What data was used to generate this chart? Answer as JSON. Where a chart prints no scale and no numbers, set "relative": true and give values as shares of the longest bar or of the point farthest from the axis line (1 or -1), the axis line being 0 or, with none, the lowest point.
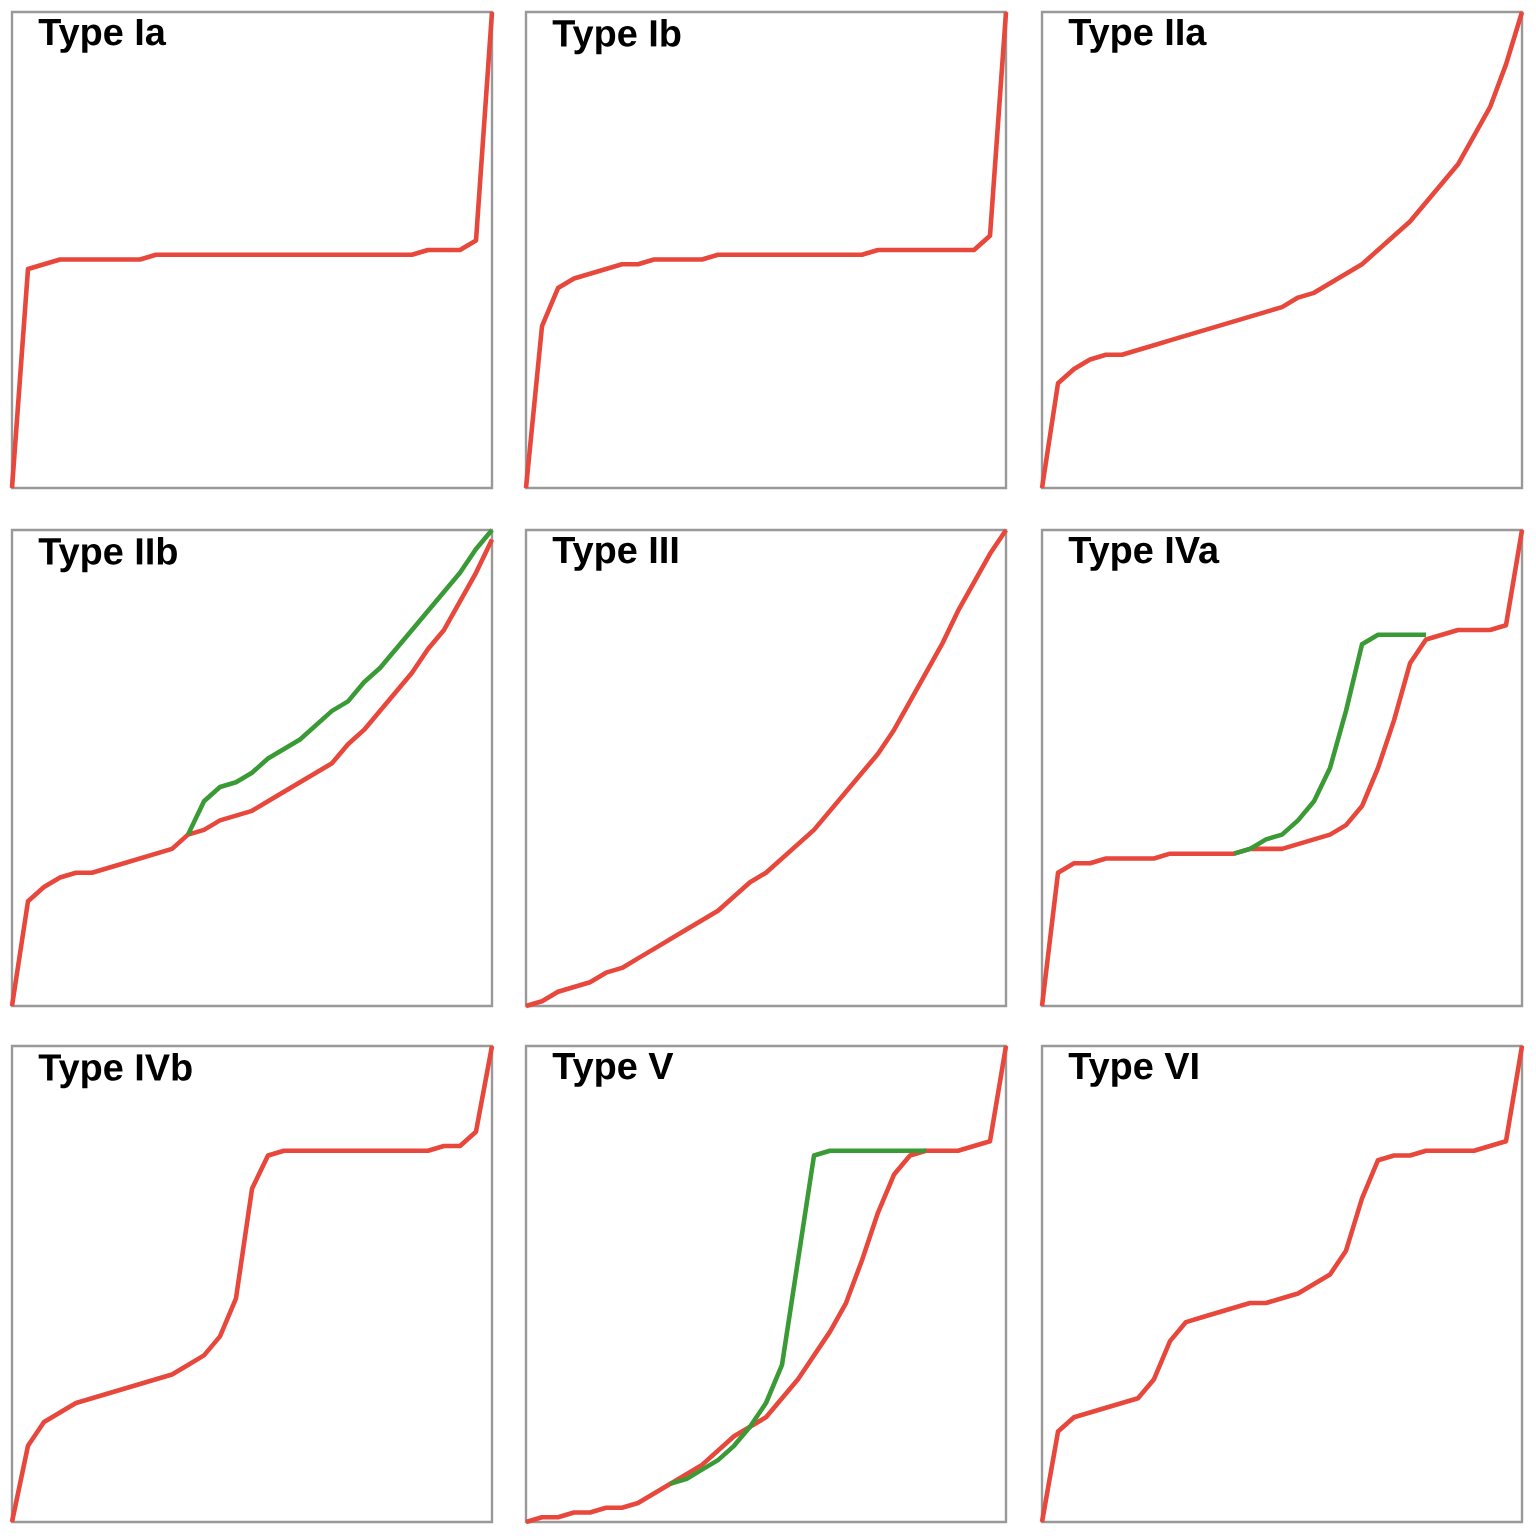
{
  "chart_data": [
    {
      "type": "line",
      "title": "Type Ia",
      "relative": true,
      "tick_labels": false,
      "categories": [
        null,
        null,
        null,
        null,
        null,
        null,
        null,
        null,
        null,
        null,
        null,
        null,
        null,
        null,
        null,
        null,
        null,
        null,
        null,
        null,
        null,
        null,
        null,
        null,
        null,
        null,
        null,
        null,
        null,
        null,
        null
      ],
      "series": [
        {
          "color": "#e8473c",
          "values": [
            0,
            0.46,
            0.47,
            0.48,
            0.48,
            0.48,
            0.48,
            0.48,
            0.48,
            0.49,
            0.49,
            0.49,
            0.49,
            0.49,
            0.49,
            0.49,
            0.49,
            0.49,
            0.49,
            0.49,
            0.49,
            0.49,
            0.49,
            0.49,
            0.49,
            0.49,
            0.5,
            0.5,
            0.5,
            0.52,
            1
          ]
        }
      ]
    },
    {
      "type": "line",
      "title": "Type Ib",
      "relative": true,
      "tick_labels": false,
      "categories": [
        null,
        null,
        null,
        null,
        null,
        null,
        null,
        null,
        null,
        null,
        null,
        null,
        null,
        null,
        null,
        null,
        null,
        null,
        null,
        null,
        null,
        null,
        null,
        null,
        null,
        null,
        null,
        null,
        null,
        null,
        null
      ],
      "series": [
        {
          "color": "#e8473c",
          "values": [
            0,
            0.34,
            0.42,
            0.44,
            0.45,
            0.46,
            0.47,
            0.47,
            0.48,
            0.48,
            0.48,
            0.48,
            0.49,
            0.49,
            0.49,
            0.49,
            0.49,
            0.49,
            0.49,
            0.49,
            0.49,
            0.49,
            0.5,
            0.5,
            0.5,
            0.5,
            0.5,
            0.5,
            0.5,
            0.53,
            1
          ]
        }
      ]
    },
    {
      "type": "line",
      "title": "Type IIa",
      "relative": true,
      "tick_labels": false,
      "categories": [
        null,
        null,
        null,
        null,
        null,
        null,
        null,
        null,
        null,
        null,
        null,
        null,
        null,
        null,
        null,
        null,
        null,
        null,
        null,
        null,
        null,
        null,
        null,
        null,
        null,
        null,
        null,
        null,
        null,
        null,
        null
      ],
      "series": [
        {
          "color": "#e8473c",
          "values": [
            0,
            0.22,
            0.25,
            0.27,
            0.28,
            0.28,
            0.29,
            0.3,
            0.31,
            0.32,
            0.33,
            0.34,
            0.35,
            0.36,
            0.37,
            0.38,
            0.4,
            0.41,
            0.43,
            0.45,
            0.47,
            0.5,
            0.53,
            0.56,
            0.6,
            0.64,
            0.68,
            0.74,
            0.8,
            0.89,
            1
          ]
        }
      ]
    },
    {
      "type": "line",
      "title": "Type IIb",
      "relative": true,
      "tick_labels": false,
      "categories": [
        null,
        null,
        null,
        null,
        null,
        null,
        null,
        null,
        null,
        null,
        null,
        null,
        null,
        null,
        null,
        null,
        null,
        null,
        null,
        null,
        null,
        null,
        null,
        null,
        null,
        null,
        null,
        null,
        null,
        null,
        null
      ],
      "series": [
        {
          "color": "#e8473c",
          "values": [
            0,
            0.22,
            0.25,
            0.27,
            0.28,
            0.28,
            0.29,
            0.3,
            0.31,
            0.32,
            0.33,
            0.36,
            0.37,
            0.39,
            0.4,
            0.41,
            0.43,
            0.45,
            0.47,
            0.49,
            0.51,
            0.55,
            0.58,
            0.62,
            0.66,
            0.7,
            0.75,
            0.79,
            0.85,
            0.91,
            0.98
          ]
        },
        {
          "color": "#3a9a35",
          "values": [
            null,
            null,
            null,
            null,
            null,
            null,
            null,
            null,
            null,
            null,
            null,
            0.36,
            0.43,
            0.46,
            0.47,
            0.49,
            0.52,
            0.54,
            0.56,
            0.59,
            0.62,
            0.64,
            0.68,
            0.71,
            0.75,
            0.79,
            0.83,
            0.87,
            0.91,
            0.96,
            1
          ]
        }
      ]
    },
    {
      "type": "line",
      "title": "Type III",
      "relative": true,
      "tick_labels": false,
      "categories": [
        null,
        null,
        null,
        null,
        null,
        null,
        null,
        null,
        null,
        null,
        null,
        null,
        null,
        null,
        null,
        null,
        null,
        null,
        null,
        null,
        null,
        null,
        null,
        null,
        null,
        null,
        null,
        null,
        null,
        null,
        null
      ],
      "series": [
        {
          "color": "#e8473c",
          "values": [
            0,
            0.01,
            0.03,
            0.04,
            0.05,
            0.07,
            0.08,
            0.1,
            0.12,
            0.14,
            0.16,
            0.18,
            0.2,
            0.23,
            0.26,
            0.28,
            0.31,
            0.34,
            0.37,
            0.41,
            0.45,
            0.49,
            0.53,
            0.58,
            0.64,
            0.7,
            0.76,
            0.83,
            0.89,
            0.95,
            1
          ]
        }
      ]
    },
    {
      "type": "line",
      "title": "Type IVa",
      "relative": true,
      "tick_labels": false,
      "categories": [
        null,
        null,
        null,
        null,
        null,
        null,
        null,
        null,
        null,
        null,
        null,
        null,
        null,
        null,
        null,
        null,
        null,
        null,
        null,
        null,
        null,
        null,
        null,
        null,
        null,
        null,
        null,
        null,
        null,
        null,
        null
      ],
      "series": [
        {
          "color": "#e8473c",
          "values": [
            0,
            0.28,
            0.3,
            0.3,
            0.31,
            0.31,
            0.31,
            0.31,
            0.32,
            0.32,
            0.32,
            0.32,
            0.32,
            0.33,
            0.33,
            0.33,
            0.34,
            0.35,
            0.36,
            0.38,
            0.42,
            0.5,
            0.6,
            0.72,
            0.77,
            0.78,
            0.79,
            0.79,
            0.79,
            0.8,
            1
          ]
        },
        {
          "color": "#3a9a35",
          "values": [
            null,
            null,
            null,
            null,
            null,
            null,
            null,
            null,
            null,
            null,
            null,
            null,
            0.32,
            0.33,
            0.35,
            0.36,
            0.39,
            0.43,
            0.5,
            0.62,
            0.76,
            0.78,
            0.78,
            0.78,
            0.78,
            null,
            null,
            null,
            null,
            null,
            null
          ]
        }
      ]
    },
    {
      "type": "line",
      "title": "Type IVb",
      "relative": true,
      "tick_labels": false,
      "categories": [
        null,
        null,
        null,
        null,
        null,
        null,
        null,
        null,
        null,
        null,
        null,
        null,
        null,
        null,
        null,
        null,
        null,
        null,
        null,
        null,
        null,
        null,
        null,
        null,
        null,
        null,
        null,
        null,
        null,
        null,
        null
      ],
      "series": [
        {
          "color": "#e8473c",
          "values": [
            0,
            0.16,
            0.21,
            0.23,
            0.25,
            0.26,
            0.27,
            0.28,
            0.29,
            0.3,
            0.31,
            0.33,
            0.35,
            0.39,
            0.47,
            0.7,
            0.77,
            0.78,
            0.78,
            0.78,
            0.78,
            0.78,
            0.78,
            0.78,
            0.78,
            0.78,
            0.78,
            0.79,
            0.79,
            0.82,
            1
          ]
        }
      ]
    },
    {
      "type": "line",
      "title": "Type V",
      "relative": true,
      "tick_labels": false,
      "categories": [
        null,
        null,
        null,
        null,
        null,
        null,
        null,
        null,
        null,
        null,
        null,
        null,
        null,
        null,
        null,
        null,
        null,
        null,
        null,
        null,
        null,
        null,
        null,
        null,
        null,
        null,
        null,
        null,
        null,
        null,
        null
      ],
      "series": [
        {
          "color": "#e8473c",
          "values": [
            0,
            0.01,
            0.01,
            0.02,
            0.02,
            0.03,
            0.03,
            0.04,
            0.06,
            0.08,
            0.1,
            0.12,
            0.15,
            0.18,
            0.2,
            0.22,
            0.26,
            0.3,
            0.35,
            0.4,
            0.46,
            0.55,
            0.65,
            0.73,
            0.77,
            0.78,
            0.78,
            0.78,
            0.79,
            0.8,
            1
          ]
        },
        {
          "color": "#3a9a35",
          "values": [
            null,
            null,
            null,
            null,
            null,
            null,
            null,
            null,
            null,
            0.08,
            0.09,
            0.11,
            0.13,
            0.16,
            0.2,
            0.25,
            0.33,
            0.55,
            0.77,
            0.78,
            0.78,
            0.78,
            0.78,
            0.78,
            0.78,
            0.78,
            null,
            null,
            null,
            null,
            null
          ]
        }
      ]
    },
    {
      "type": "line",
      "title": "Type VI",
      "relative": true,
      "tick_labels": false,
      "categories": [
        null,
        null,
        null,
        null,
        null,
        null,
        null,
        null,
        null,
        null,
        null,
        null,
        null,
        null,
        null,
        null,
        null,
        null,
        null,
        null,
        null,
        null,
        null,
        null,
        null,
        null,
        null,
        null,
        null,
        null,
        null
      ],
      "series": [
        {
          "color": "#e8473c",
          "values": [
            0,
            0.19,
            0.22,
            0.23,
            0.24,
            0.25,
            0.26,
            0.3,
            0.38,
            0.42,
            0.43,
            0.44,
            0.45,
            0.46,
            0.46,
            0.47,
            0.48,
            0.5,
            0.52,
            0.57,
            0.68,
            0.76,
            0.77,
            0.77,
            0.78,
            0.78,
            0.78,
            0.78,
            0.79,
            0.8,
            1
          ]
        }
      ]
    }
  ]
}
